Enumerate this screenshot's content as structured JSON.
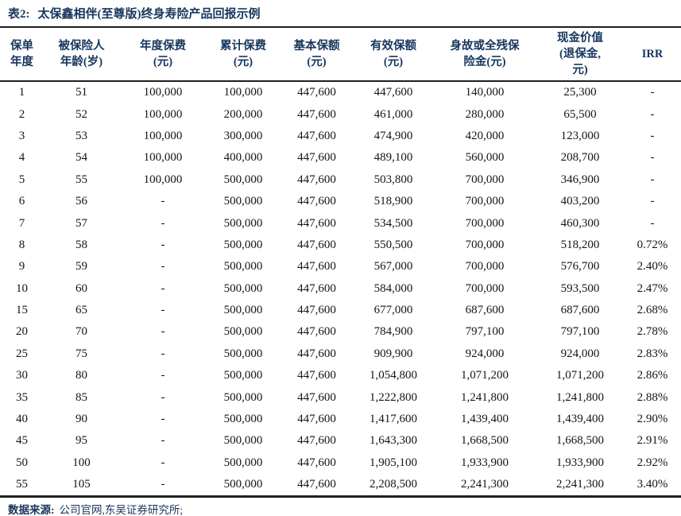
{
  "title": {
    "label": "表2:",
    "text": "太保鑫相伴(至尊版)终身寿险产品回报示例"
  },
  "table": {
    "columns": [
      "保单\n年度",
      "被保险人\n年龄(岁)",
      "年度保费\n(元)",
      "累计保费\n(元)",
      "基本保额\n(元)",
      "有效保额\n(元)",
      "身故或全残保\n险金(元)",
      "现金价值\n(退保金,\n元)",
      "IRR"
    ],
    "rows": [
      [
        "1",
        "51",
        "100,000",
        "100,000",
        "447,600",
        "447,600",
        "140,000",
        "25,300",
        "-"
      ],
      [
        "2",
        "52",
        "100,000",
        "200,000",
        "447,600",
        "461,000",
        "280,000",
        "65,500",
        "-"
      ],
      [
        "3",
        "53",
        "100,000",
        "300,000",
        "447,600",
        "474,900",
        "420,000",
        "123,000",
        "-"
      ],
      [
        "4",
        "54",
        "100,000",
        "400,000",
        "447,600",
        "489,100",
        "560,000",
        "208,700",
        "-"
      ],
      [
        "5",
        "55",
        "100,000",
        "500,000",
        "447,600",
        "503,800",
        "700,000",
        "346,900",
        "-"
      ],
      [
        "6",
        "56",
        "-",
        "500,000",
        "447,600",
        "518,900",
        "700,000",
        "403,200",
        "-"
      ],
      [
        "7",
        "57",
        "-",
        "500,000",
        "447,600",
        "534,500",
        "700,000",
        "460,300",
        "-"
      ],
      [
        "8",
        "58",
        "-",
        "500,000",
        "447,600",
        "550,500",
        "700,000",
        "518,200",
        "0.72%"
      ],
      [
        "9",
        "59",
        "-",
        "500,000",
        "447,600",
        "567,000",
        "700,000",
        "576,700",
        "2.40%"
      ],
      [
        "10",
        "60",
        "-",
        "500,000",
        "447,600",
        "584,000",
        "700,000",
        "593,500",
        "2.47%"
      ],
      [
        "15",
        "65",
        "-",
        "500,000",
        "447,600",
        "677,000",
        "687,600",
        "687,600",
        "2.68%"
      ],
      [
        "20",
        "70",
        "-",
        "500,000",
        "447,600",
        "784,900",
        "797,100",
        "797,100",
        "2.78%"
      ],
      [
        "25",
        "75",
        "-",
        "500,000",
        "447,600",
        "909,900",
        "924,000",
        "924,000",
        "2.83%"
      ],
      [
        "30",
        "80",
        "-",
        "500,000",
        "447,600",
        "1,054,800",
        "1,071,200",
        "1,071,200",
        "2.86%"
      ],
      [
        "35",
        "85",
        "-",
        "500,000",
        "447,600",
        "1,222,800",
        "1,241,800",
        "1,241,800",
        "2.88%"
      ],
      [
        "40",
        "90",
        "-",
        "500,000",
        "447,600",
        "1,417,600",
        "1,439,400",
        "1,439,400",
        "2.90%"
      ],
      [
        "45",
        "95",
        "-",
        "500,000",
        "447,600",
        "1,643,300",
        "1,668,500",
        "1,668,500",
        "2.91%"
      ],
      [
        "50",
        "100",
        "-",
        "500,000",
        "447,600",
        "1,905,100",
        "1,933,900",
        "1,933,900",
        "2.92%"
      ],
      [
        "55",
        "105",
        "-",
        "500,000",
        "447,600",
        "2,208,500",
        "2,241,300",
        "2,241,300",
        "3.40%"
      ]
    ]
  },
  "footer": {
    "label": "数据来源:",
    "text": "公司官网,东吴证券研究所;"
  },
  "colors": {
    "accent_navy": "#17365d",
    "rule_dark": "#1f1f1f",
    "body_text": "#141414"
  }
}
